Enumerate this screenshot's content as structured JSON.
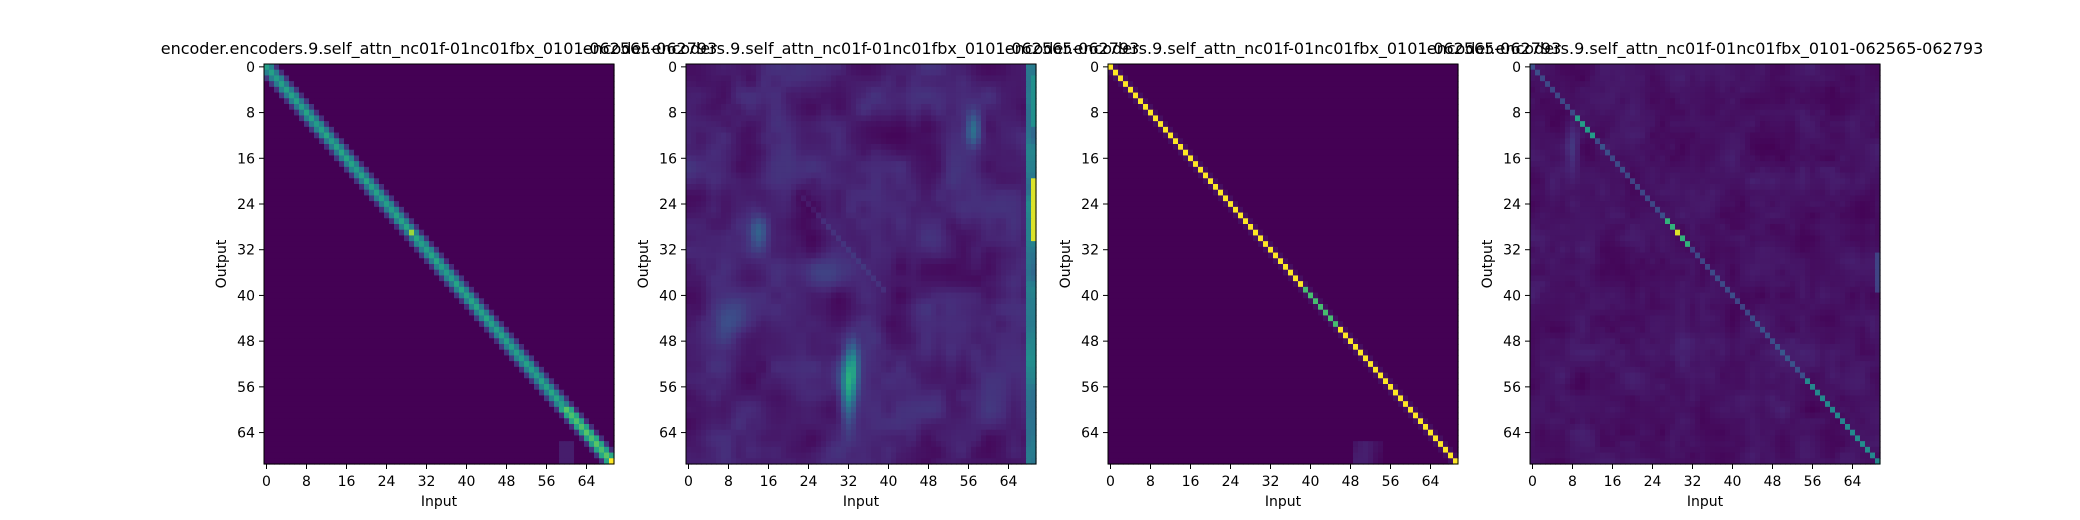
{
  "figure": {
    "background": "#ffffff",
    "colormap": "viridis"
  },
  "chart_data": [
    {
      "type": "heatmap",
      "title": "encoder.encoders.9.self_attn_nc01f-01nc01fbx_0101-062565-062793",
      "xlabel": "Input",
      "ylabel": "Output",
      "xticks": [
        0,
        8,
        16,
        24,
        32,
        40,
        48,
        56,
        64
      ],
      "yticks": [
        0,
        8,
        16,
        24,
        32,
        40,
        48,
        56,
        64
      ],
      "size": 70,
      "pattern": "wide-diagonal",
      "max_cell": [
        69,
        69
      ]
    },
    {
      "type": "heatmap",
      "title": "encoder.encoders.9.self_attn_nc01f-01nc01fbx_0101-062565-062793",
      "xlabel": "Input",
      "ylabel": "Output",
      "xticks": [
        0,
        8,
        16,
        24,
        32,
        40,
        48,
        56,
        64
      ],
      "yticks": [
        0,
        8,
        16,
        24,
        32,
        40,
        48,
        56,
        64
      ],
      "size": 70,
      "pattern": "diffuse-columns",
      "max_cell": [
        24,
        69
      ]
    },
    {
      "type": "heatmap",
      "title": "encoder.encoders.9.self_attn_nc01f-01nc01fbx_0101-062565-062793",
      "xlabel": "Input",
      "ylabel": "Output",
      "xticks": [
        0,
        8,
        16,
        24,
        32,
        40,
        48,
        56,
        64
      ],
      "yticks": [
        0,
        8,
        16,
        24,
        32,
        40,
        48,
        56,
        64
      ],
      "size": 70,
      "pattern": "sharp-diagonal",
      "max_cell": [
        0,
        0
      ]
    },
    {
      "type": "heatmap",
      "title": "encoder.encoders.9.self_attn_nc01f-01nc01fbx_0101-062565-062793",
      "xlabel": "Input",
      "ylabel": "Output",
      "xticks": [
        0,
        8,
        16,
        24,
        32,
        40,
        48,
        56,
        64
      ],
      "yticks": [
        0,
        8,
        16,
        24,
        32,
        40,
        48,
        56,
        64
      ],
      "size": 70,
      "pattern": "faint-diagonal",
      "max_cell": [
        29,
        29
      ]
    }
  ]
}
